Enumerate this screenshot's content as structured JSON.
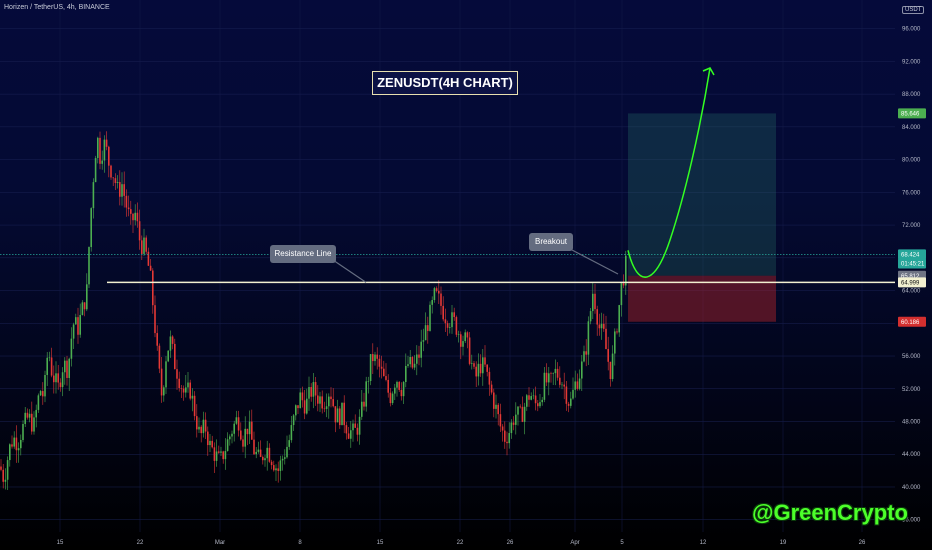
{
  "header": {
    "symbol_line": "Horizen / TetherUS, 4h, BINANCE",
    "currency": "USDT"
  },
  "annotations": {
    "title": "ZENUSDT(4H CHART)",
    "resistance_label": "Resistance Line",
    "breakout_label": "Breakout",
    "watermark": "@GreenCrypto"
  },
  "chart_data": {
    "type": "candlestick",
    "ylim": [
      34.5,
      99.5
    ],
    "y_ticks": [
      "36.000",
      "40.000",
      "44.000",
      "48.000",
      "52.000",
      "56.000",
      "60.000",
      "64.000",
      "68.000",
      "72.000",
      "76.000",
      "80.000",
      "84.000",
      "88.000",
      "92.000",
      "96.000"
    ],
    "x_ticks": [
      "15",
      "22",
      "Mar",
      "8",
      "15",
      "22",
      "26",
      "Apr",
      "5",
      "12",
      "19",
      "26"
    ],
    "price_labels": [
      {
        "text": "85.646",
        "value": 85.646,
        "color": "#4caf50"
      },
      {
        "text": "68.424",
        "value": 68.424,
        "color": "#26a69a"
      },
      {
        "text": "01:45:21",
        "value": 67.3,
        "color": "#26a69a"
      },
      {
        "text": "65.812",
        "value": 65.812,
        "color": "#6e7384"
      },
      {
        "text": "64.999",
        "value": 64.999,
        "color": "#f2f0d0"
      },
      {
        "text": "60.186",
        "value": 60.186,
        "color": "#d32f2f"
      }
    ],
    "resistance_level": 65.0,
    "position": {
      "entry": 65.812,
      "target": 85.646,
      "stop": 60.186
    },
    "current_price": 68.424,
    "colors": {
      "up": "#4caf50",
      "down": "#e53935"
    },
    "price_path": [
      [
        0,
        42.5
      ],
      [
        4,
        41
      ],
      [
        9,
        44.5
      ],
      [
        13,
        46
      ],
      [
        18,
        45.5
      ],
      [
        22,
        47
      ],
      [
        28,
        48.5
      ],
      [
        34,
        47.5
      ],
      [
        40,
        52
      ],
      [
        44,
        51
      ],
      [
        48,
        57
      ],
      [
        52,
        54
      ],
      [
        58,
        52
      ],
      [
        63,
        55
      ],
      [
        68,
        54.5
      ],
      [
        73,
        60
      ],
      [
        78,
        59.5
      ],
      [
        83,
        62
      ],
      [
        87,
        64
      ],
      [
        90,
        72
      ],
      [
        94,
        79
      ],
      [
        97,
        83
      ],
      [
        100,
        80.5
      ],
      [
        105,
        82
      ],
      [
        109,
        79.5
      ],
      [
        114,
        78
      ],
      [
        118,
        76
      ],
      [
        122,
        77
      ],
      [
        127,
        74
      ],
      [
        131,
        72
      ],
      [
        135,
        73.5
      ],
      [
        140,
        70
      ],
      [
        145,
        69
      ],
      [
        150,
        66
      ],
      [
        154,
        61
      ],
      [
        158,
        55
      ],
      [
        162,
        51
      ],
      [
        166,
        56
      ],
      [
        170,
        58
      ],
      [
        175,
        55
      ],
      [
        180,
        53
      ],
      [
        185,
        51
      ],
      [
        190,
        52
      ],
      [
        195,
        49
      ],
      [
        200,
        46
      ],
      [
        205,
        47.5
      ],
      [
        210,
        45
      ],
      [
        215,
        44
      ],
      [
        220,
        43
      ],
      [
        226,
        45
      ],
      [
        232,
        47
      ],
      [
        238,
        48.5
      ],
      [
        243,
        46
      ],
      [
        248,
        47.5
      ],
      [
        254,
        44.5
      ],
      [
        260,
        43
      ],
      [
        266,
        45
      ],
      [
        272,
        43.5
      ],
      [
        278,
        42
      ],
      [
        284,
        44
      ],
      [
        290,
        46
      ],
      [
        295,
        49
      ],
      [
        300,
        51
      ],
      [
        306,
        50
      ],
      [
        312,
        52
      ],
      [
        318,
        51
      ],
      [
        324,
        50.5
      ],
      [
        330,
        52
      ],
      [
        336,
        48.5
      ],
      [
        342,
        49
      ],
      [
        348,
        47
      ],
      [
        354,
        46.5
      ],
      [
        360,
        48
      ],
      [
        366,
        52
      ],
      [
        372,
        56
      ],
      [
        378,
        55
      ],
      [
        384,
        53
      ],
      [
        390,
        51
      ],
      [
        396,
        53.5
      ],
      [
        402,
        52
      ],
      [
        408,
        55
      ],
      [
        414,
        54.5
      ],
      [
        420,
        56.5
      ],
      [
        425,
        59
      ],
      [
        430,
        61
      ],
      [
        435,
        63.5
      ],
      [
        440,
        62.5
      ],
      [
        445,
        61
      ],
      [
        450,
        60.5
      ],
      [
        455,
        60
      ],
      [
        460,
        58.5
      ],
      [
        465,
        58
      ],
      [
        470,
        56
      ],
      [
        475,
        53
      ],
      [
        480,
        55
      ],
      [
        485,
        54.5
      ],
      [
        490,
        52
      ],
      [
        495,
        50
      ],
      [
        500,
        47.5
      ],
      [
        505,
        46
      ],
      [
        510,
        47
      ],
      [
        515,
        49
      ],
      [
        520,
        48.5
      ],
      [
        525,
        50
      ],
      [
        530,
        51.5
      ],
      [
        535,
        50
      ],
      [
        540,
        51
      ],
      [
        545,
        53
      ],
      [
        550,
        52.5
      ],
      [
        555,
        54
      ],
      [
        560,
        53.5
      ],
      [
        565,
        52
      ],
      [
        570,
        50
      ],
      [
        575,
        52.5
      ],
      [
        580,
        54
      ],
      [
        585,
        56
      ],
      [
        590,
        61
      ],
      [
        593,
        64
      ],
      [
        596,
        62
      ],
      [
        600,
        59
      ],
      [
        604,
        58.5
      ],
      [
        607,
        56
      ],
      [
        611,
        54
      ],
      [
        615,
        58
      ],
      [
        619,
        62
      ],
      [
        622,
        65
      ],
      [
        625,
        66.5
      ],
      [
        628,
        68.424
      ]
    ]
  }
}
